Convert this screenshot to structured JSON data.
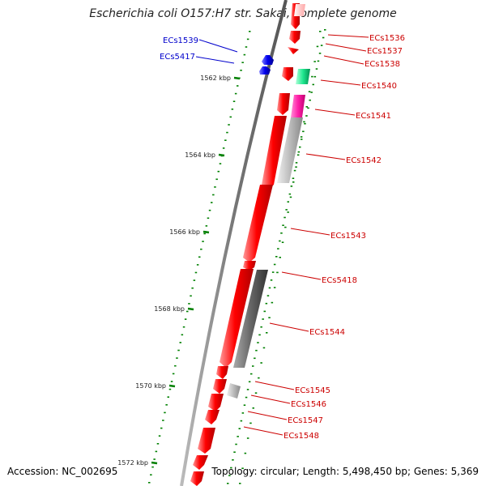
{
  "title": "Escherichia coli O157:H7 str. Sakai, complete genome",
  "accession": "Accession: NC_002695",
  "summary": "Topology: circular; Length: 5,498,450 bp; Genes: 5,369",
  "colors": {
    "forward_cds": "#ff0000",
    "reverse_cds": "#0000ff",
    "label_fwd": "#cc0000",
    "label_rev": "#0000cc",
    "backbone": "#808080",
    "ticks": "#008000"
  },
  "scale_labels": [
    "1562 kbp",
    "1564 kbp",
    "1566 kbp",
    "1568 kbp",
    "1570 kbp",
    "1572 kbp"
  ],
  "gene_labels": [
    {
      "name": "ECs1539",
      "strand": "reverse"
    },
    {
      "name": "ECs5417",
      "strand": "reverse"
    },
    {
      "name": "ECs1536",
      "strand": "forward"
    },
    {
      "name": "ECs1537",
      "strand": "forward"
    },
    {
      "name": "ECs1538",
      "strand": "forward"
    },
    {
      "name": "ECs1540",
      "strand": "forward"
    },
    {
      "name": "ECs1541",
      "strand": "forward"
    },
    {
      "name": "ECs1542",
      "strand": "forward"
    },
    {
      "name": "ECs1543",
      "strand": "forward"
    },
    {
      "name": "ECs5418",
      "strand": "forward"
    },
    {
      "name": "ECs1544",
      "strand": "forward"
    },
    {
      "name": "ECs1545",
      "strand": "forward"
    },
    {
      "name": "ECs1546",
      "strand": "forward"
    },
    {
      "name": "ECs1547",
      "strand": "forward"
    },
    {
      "name": "ECs1548",
      "strand": "forward"
    }
  ]
}
